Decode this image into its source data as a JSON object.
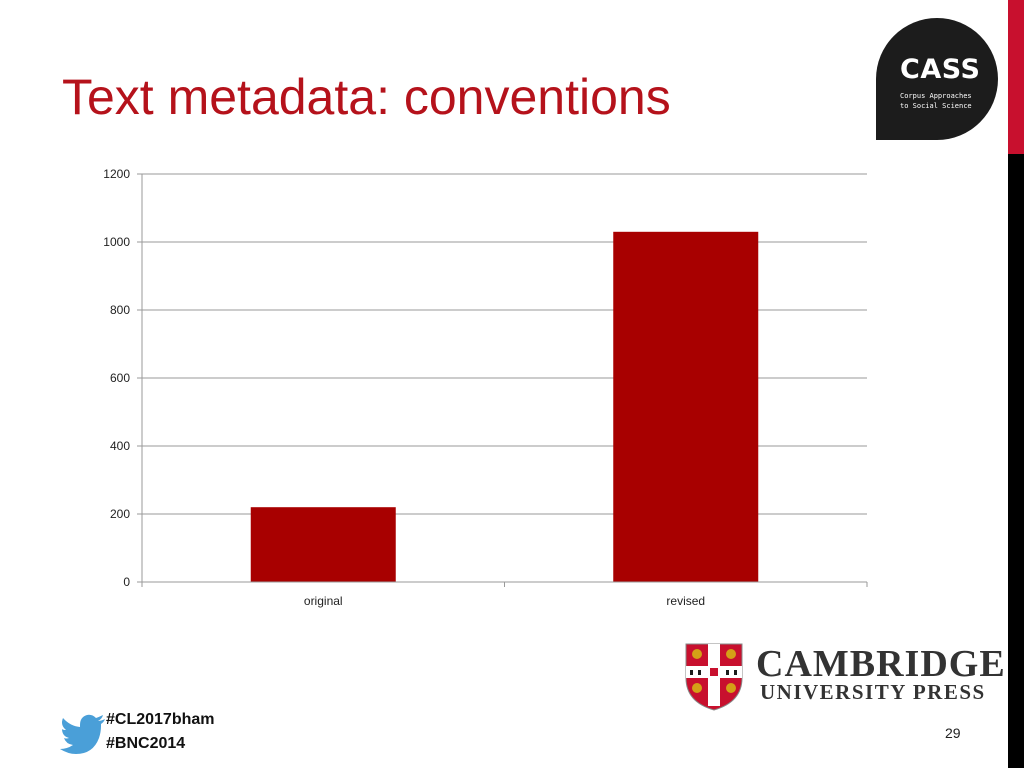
{
  "slide": {
    "title": "Text metadata: conventions",
    "page_number": "29",
    "hashtags": [
      "#CL2017bham",
      "#BNC2014"
    ]
  },
  "logos": {
    "cass": {
      "name": "CASS",
      "subtitle_line1": "Corpus Approaches",
      "subtitle_line2": "to Social Science"
    },
    "publisher": {
      "line1": "CAMBRIDGE",
      "line2": "UNIVERSITY PRESS",
      "icon": "university-coat-of-arms"
    },
    "social_icon": "twitter-bird-icon"
  },
  "colors": {
    "title": "#b5121b",
    "bar": "#a80000",
    "accent_red": "#c8102e",
    "accent_black": "#000000",
    "twitter_blue": "#4a9fd8"
  },
  "chart_data": {
    "type": "bar",
    "categories": [
      "original",
      "revised"
    ],
    "values": [
      220,
      1030
    ],
    "ylim": [
      0,
      1200
    ],
    "yticks": [
      0,
      200,
      400,
      600,
      800,
      1000,
      1200
    ],
    "grid": true,
    "legend": "none"
  }
}
